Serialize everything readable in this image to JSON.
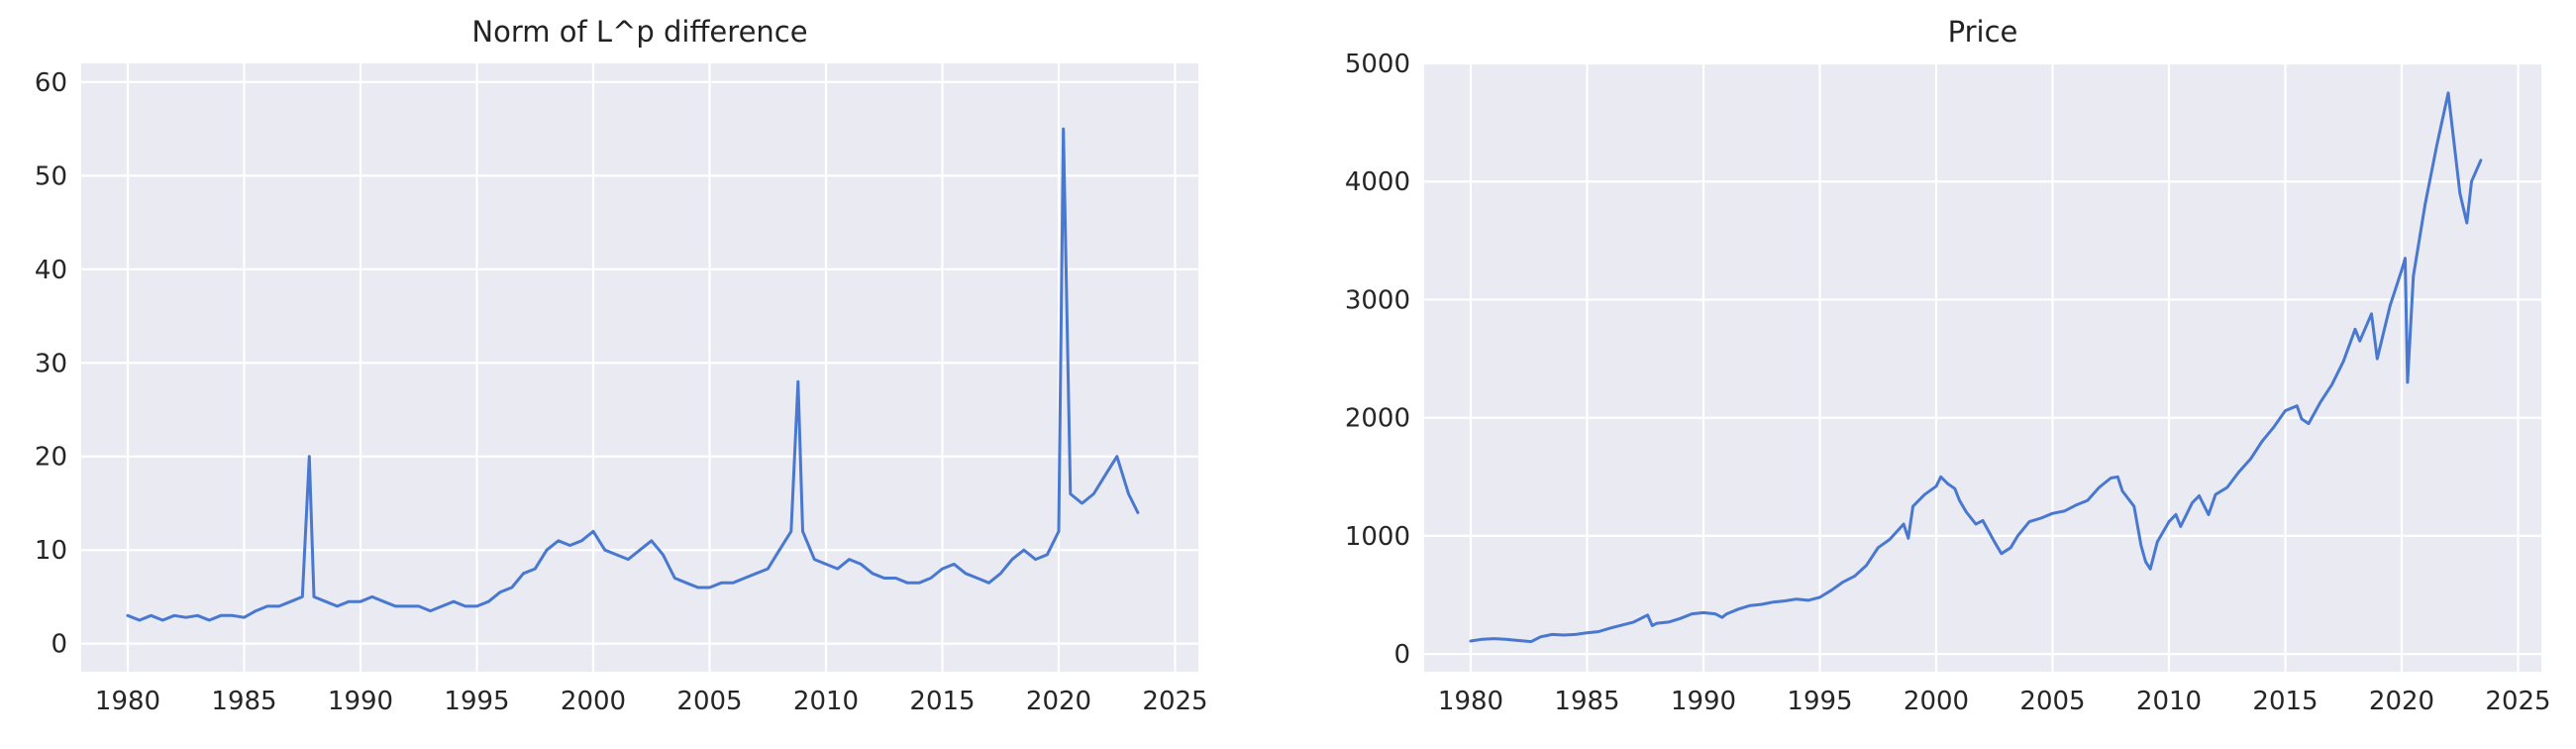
{
  "chart_data": [
    {
      "type": "line",
      "title": "Norm of L^p difference",
      "xlabel": "",
      "ylabel": "",
      "xlim": [
        1978.0,
        2026.0
      ],
      "ylim": [
        -3,
        62
      ],
      "xticks": [
        1980,
        1985,
        1990,
        1995,
        2000,
        2005,
        2010,
        2015,
        2020,
        2025
      ],
      "yticks": [
        0,
        10,
        20,
        30,
        40,
        50,
        60
      ],
      "grid": true,
      "legend": "none",
      "series": [
        {
          "color": "#4878cf",
          "x": [
            1980.0,
            1980.5,
            1981.0,
            1981.5,
            1982.0,
            1982.5,
            1983.0,
            1983.5,
            1984.0,
            1984.5,
            1985.0,
            1985.5,
            1986.0,
            1986.5,
            1987.0,
            1987.5,
            1987.8,
            1988.0,
            1988.5,
            1989.0,
            1989.5,
            1990.0,
            1990.5,
            1991.0,
            1991.5,
            1992.0,
            1992.5,
            1993.0,
            1993.5,
            1994.0,
            1994.5,
            1995.0,
            1995.5,
            1996.0,
            1996.5,
            1997.0,
            1997.5,
            1998.0,
            1998.5,
            1999.0,
            1999.5,
            2000.0,
            2000.5,
            2001.0,
            2001.5,
            2002.0,
            2002.5,
            2003.0,
            2003.5,
            2004.0,
            2004.5,
            2005.0,
            2005.5,
            2006.0,
            2006.5,
            2007.0,
            2007.5,
            2008.0,
            2008.5,
            2008.8,
            2009.0,
            2009.5,
            2010.0,
            2010.5,
            2011.0,
            2011.5,
            2012.0,
            2012.5,
            2013.0,
            2013.5,
            2014.0,
            2014.5,
            2015.0,
            2015.5,
            2016.0,
            2016.5,
            2017.0,
            2017.5,
            2018.0,
            2018.5,
            2019.0,
            2019.5,
            2020.0,
            2020.2,
            2020.5,
            2021.0,
            2021.5,
            2022.0,
            2022.5,
            2023.0,
            2023.4
          ],
          "y": [
            3.0,
            2.5,
            3.0,
            2.5,
            3.0,
            2.8,
            3.0,
            2.5,
            3.0,
            3.0,
            2.8,
            3.5,
            4.0,
            4.0,
            4.5,
            5.0,
            20.0,
            5.0,
            4.5,
            4.0,
            4.5,
            4.5,
            5.0,
            4.5,
            4.0,
            4.0,
            4.0,
            3.5,
            4.0,
            4.5,
            4.0,
            4.0,
            4.5,
            5.5,
            6.0,
            7.5,
            8.0,
            10.0,
            11.0,
            10.5,
            11.0,
            12.0,
            10.0,
            9.5,
            9.0,
            10.0,
            11.0,
            9.5,
            7.0,
            6.5,
            6.0,
            6.0,
            6.5,
            6.5,
            7.0,
            7.5,
            8.0,
            10.0,
            12.0,
            28.0,
            12.0,
            9.0,
            8.5,
            8.0,
            9.0,
            8.5,
            7.5,
            7.0,
            7.0,
            6.5,
            6.5,
            7.0,
            8.0,
            8.5,
            7.5,
            7.0,
            6.5,
            7.5,
            9.0,
            10.0,
            9.0,
            9.5,
            12.0,
            55.0,
            16.0,
            15.0,
            16.0,
            18.0,
            20.0,
            16.0,
            14.0
          ]
        }
      ]
    },
    {
      "type": "line",
      "title": "Price",
      "xlabel": "",
      "ylabel": "",
      "xlim": [
        1978.0,
        2026.0
      ],
      "ylim": [
        -150,
        5000
      ],
      "xticks": [
        1980,
        1985,
        1990,
        1995,
        2000,
        2005,
        2010,
        2015,
        2020,
        2025
      ],
      "yticks": [
        0,
        1000,
        2000,
        3000,
        4000,
        5000
      ],
      "grid": true,
      "legend": "none",
      "series": [
        {
          "color": "#4878cf",
          "x": [
            1980.0,
            1980.5,
            1981.0,
            1981.5,
            1982.0,
            1982.6,
            1983.0,
            1983.5,
            1984.0,
            1984.5,
            1985.0,
            1985.5,
            1986.0,
            1986.5,
            1987.0,
            1987.6,
            1987.8,
            1988.0,
            1988.5,
            1989.0,
            1989.5,
            1990.0,
            1990.5,
            1990.8,
            1991.0,
            1991.5,
            1992.0,
            1992.5,
            1993.0,
            1993.5,
            1994.0,
            1994.5,
            1995.0,
            1995.5,
            1996.0,
            1996.5,
            1997.0,
            1997.5,
            1998.0,
            1998.6,
            1998.8,
            1999.0,
            1999.5,
            2000.0,
            2000.2,
            2000.5,
            2000.8,
            2001.0,
            2001.3,
            2001.7,
            2002.0,
            2002.5,
            2002.8,
            2003.2,
            2003.5,
            2004.0,
            2004.5,
            2005.0,
            2005.5,
            2006.0,
            2006.5,
            2007.0,
            2007.5,
            2007.8,
            2008.0,
            2008.5,
            2008.8,
            2009.0,
            2009.2,
            2009.5,
            2010.0,
            2010.3,
            2010.5,
            2011.0,
            2011.3,
            2011.7,
            2012.0,
            2012.5,
            2013.0,
            2013.5,
            2014.0,
            2014.5,
            2015.0,
            2015.5,
            2015.7,
            2016.0,
            2016.5,
            2017.0,
            2017.5,
            2018.0,
            2018.2,
            2018.7,
            2018.95,
            2019.5,
            2020.0,
            2020.15,
            2020.25,
            2020.5,
            2021.0,
            2021.5,
            2022.0,
            2022.5,
            2022.8,
            2023.0,
            2023.4
          ],
          "y": [
            110,
            125,
            130,
            125,
            115,
            105,
            145,
            165,
            160,
            165,
            180,
            190,
            220,
            245,
            270,
            330,
            240,
            260,
            270,
            300,
            340,
            350,
            340,
            310,
            340,
            380,
            410,
            420,
            440,
            450,
            465,
            455,
            480,
            540,
            610,
            660,
            750,
            900,
            970,
            1100,
            980,
            1250,
            1350,
            1420,
            1500,
            1440,
            1400,
            1300,
            1200,
            1100,
            1130,
            950,
            850,
            900,
            1000,
            1120,
            1150,
            1190,
            1210,
            1260,
            1300,
            1410,
            1490,
            1500,
            1380,
            1250,
            920,
            780,
            720,
            950,
            1120,
            1180,
            1080,
            1280,
            1340,
            1180,
            1350,
            1410,
            1540,
            1650,
            1800,
            1920,
            2060,
            2100,
            1990,
            1950,
            2130,
            2280,
            2480,
            2750,
            2650,
            2880,
            2500,
            2950,
            3250,
            3350,
            2300,
            3200,
            3800,
            4300,
            4750,
            3900,
            3650,
            4000,
            4180
          ]
        }
      ]
    }
  ]
}
